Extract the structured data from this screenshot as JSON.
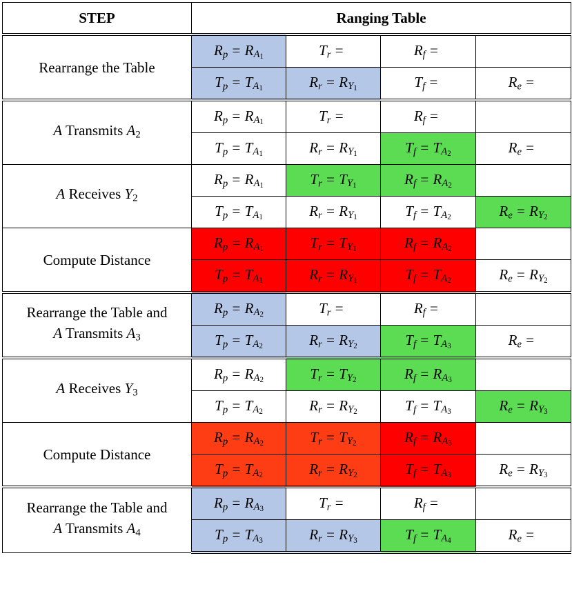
{
  "header": {
    "step": "STEP",
    "ranging_table": "Ranging Table"
  },
  "colors": {
    "blue": "#b4c7e7",
    "green": "#5bdc52",
    "red": "#ff0000",
    "orange": "#ff3d14"
  },
  "groups": [
    {
      "step": [
        {
          "text": "Rearrange the Table"
        }
      ],
      "rows": [
        [
          {
            "text": "R_p = R_{A_1}",
            "color": "blue"
          },
          {
            "text": "T_r ="
          },
          {
            "text": "R_f ="
          },
          {
            "text": ""
          }
        ],
        [
          {
            "text": "T_p = T_{A_1}",
            "color": "blue"
          },
          {
            "text": "R_r = R_{Y_1}",
            "color": "blue"
          },
          {
            "text": "T_f ="
          },
          {
            "text": "R_e ="
          }
        ]
      ]
    },
    {
      "step": [
        {
          "text": "A Transmits A_2"
        }
      ],
      "rows": [
        [
          {
            "text": "R_p = R_{A_1}"
          },
          {
            "text": "T_r ="
          },
          {
            "text": "R_f ="
          },
          {
            "text": ""
          }
        ],
        [
          {
            "text": "T_p = T_{A_1}"
          },
          {
            "text": "R_r = R_{Y_1}"
          },
          {
            "text": "T_f = T_{A_2}",
            "color": "green"
          },
          {
            "text": "R_e ="
          }
        ]
      ]
    },
    {
      "step": [
        {
          "text": "A Receives Y_2"
        }
      ],
      "rows": [
        [
          {
            "text": "R_p = R_{A_1}"
          },
          {
            "text": "T_r = T_{Y_1}",
            "color": "green"
          },
          {
            "text": "R_f = R_{A_2}",
            "color": "green"
          },
          {
            "text": ""
          }
        ],
        [
          {
            "text": "T_p = T_{A_1}"
          },
          {
            "text": "R_r = R_{Y_1}"
          },
          {
            "text": "T_f = T_{A_2}"
          },
          {
            "text": "R_e = R_{Y_2}",
            "color": "green"
          }
        ]
      ]
    },
    {
      "step": [
        {
          "text": "Compute Distance"
        }
      ],
      "rows": [
        [
          {
            "text": "R_p = R_{A_1}",
            "color": "red"
          },
          {
            "text": "T_r = T_{Y_1}",
            "color": "red"
          },
          {
            "text": "R_f = R_{A_2}",
            "color": "red"
          },
          {
            "text": ""
          }
        ],
        [
          {
            "text": "T_p = T_{A_1}",
            "color": "red"
          },
          {
            "text": "R_r = R_{Y_1}",
            "color": "red"
          },
          {
            "text": "T_f = T_{A_2}",
            "color": "red"
          },
          {
            "text": "R_e = R_{Y_2}"
          }
        ]
      ]
    },
    {
      "step": [
        {
          "text": "Rearrange the Table and"
        },
        {
          "text": "A Transmits A_3"
        }
      ],
      "rows": [
        [
          {
            "text": "R_p = R_{A_2}",
            "color": "blue"
          },
          {
            "text": "T_r ="
          },
          {
            "text": "R_f ="
          },
          {
            "text": ""
          }
        ],
        [
          {
            "text": "T_p = T_{A_2}",
            "color": "blue"
          },
          {
            "text": "R_r = R_{Y_2}",
            "color": "blue"
          },
          {
            "text": "T_f = T_{A_3}",
            "color": "green"
          },
          {
            "text": "R_e ="
          }
        ]
      ]
    },
    {
      "step": [
        {
          "text": "A Receives Y_3"
        }
      ],
      "rows": [
        [
          {
            "text": "R_p = R_{A_2}"
          },
          {
            "text": "T_r = T_{Y_2}",
            "color": "green"
          },
          {
            "text": "R_f = R_{A_3}",
            "color": "green"
          },
          {
            "text": ""
          }
        ],
        [
          {
            "text": "T_p = T_{A_2}"
          },
          {
            "text": "R_r = R_{Y_2}"
          },
          {
            "text": "T_f = T_{A_3}"
          },
          {
            "text": "R_e = R_{Y_3}",
            "color": "green"
          }
        ]
      ]
    },
    {
      "step": [
        {
          "text": "Compute Distance"
        }
      ],
      "rows": [
        [
          {
            "text": "R_p = R_{A_2}",
            "color": "orange"
          },
          {
            "text": "T_r = T_{Y_2}",
            "color": "orange"
          },
          {
            "text": "R_f = R_{A_3}",
            "color": "red"
          },
          {
            "text": ""
          }
        ],
        [
          {
            "text": "T_p = T_{A_2}",
            "color": "orange"
          },
          {
            "text": "R_r = R_{Y_2}",
            "color": "orange"
          },
          {
            "text": "T_f = T_{A_3}",
            "color": "red"
          },
          {
            "text": "R_e = R_{Y_3}"
          }
        ]
      ]
    },
    {
      "step": [
        {
          "text": "Rearrange the Table and"
        },
        {
          "text": "A Transmits A_4"
        }
      ],
      "rows": [
        [
          {
            "text": "R_p = R_{A_3}",
            "color": "blue"
          },
          {
            "text": "T_r ="
          },
          {
            "text": "R_f ="
          },
          {
            "text": ""
          }
        ],
        [
          {
            "text": "T_p = T_{A_3}",
            "color": "blue"
          },
          {
            "text": "R_r = R_{Y_3}",
            "color": "blue"
          },
          {
            "text": "T_f = T_{A_4}",
            "color": "green"
          },
          {
            "text": "R_e ="
          }
        ]
      ]
    }
  ]
}
